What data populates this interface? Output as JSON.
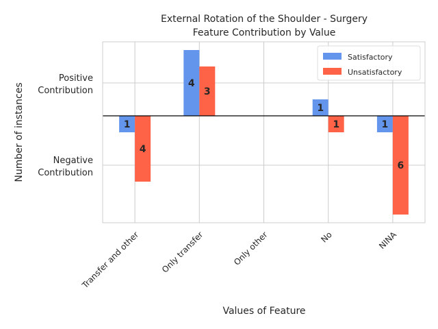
{
  "chart_data": {
    "type": "bar",
    "title_lines": [
      "External Rotation of the Shoulder - Surgery",
      "Feature Contribution by Value"
    ],
    "xlabel": "Values of Feature",
    "ylabel": "Number of instances",
    "categories": [
      "Transfer and other",
      "Only transfer",
      "Only other",
      "No",
      "NINA"
    ],
    "series": [
      {
        "name": "Satisfactory",
        "color": "#6495ED",
        "values": [
          -1,
          4,
          0,
          1,
          -1
        ],
        "labels": [
          "1",
          "4",
          "",
          "1",
          "1"
        ]
      },
      {
        "name": "Unsatisfactory",
        "color": "#FF6347",
        "values": [
          -4,
          3,
          0,
          -1,
          -6
        ],
        "labels": [
          "4",
          "3",
          "",
          "1",
          "6"
        ]
      }
    ],
    "ylim": [
      -6.5,
      4.5
    ],
    "y_ticks": [
      {
        "value": 2,
        "lines": [
          "Positive",
          "Contribution"
        ]
      },
      {
        "value": -3,
        "lines": [
          "Negative",
          "Contribution"
        ]
      }
    ],
    "grid": true,
    "legend": "upper right"
  }
}
